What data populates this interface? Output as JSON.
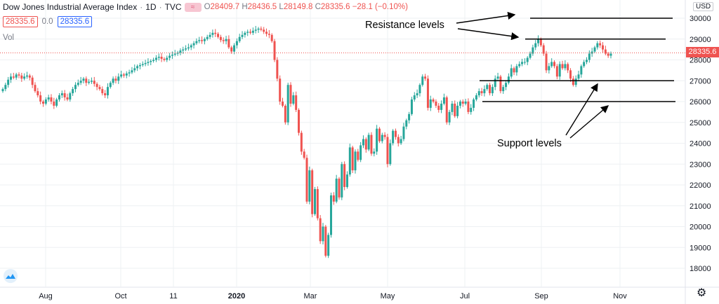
{
  "header": {
    "title": "Dow Jones Industrial Average Index",
    "interval": "1D",
    "source": "TVC",
    "badge": "≈",
    "ohlc": {
      "o_label": "O",
      "o": "28409.7",
      "h_label": "H",
      "h": "28436.5",
      "l_label": "L",
      "l": "28149.8",
      "c_label": "C",
      "c": "28335.6",
      "change": "−28.1 (−0.10%)"
    }
  },
  "legend_row": {
    "price_box": "28335.6",
    "zero": "0.0",
    "price_box_blue": "28335.6"
  },
  "volume_label": "Vol",
  "currency": "USD",
  "last_price_tag": "28335.6",
  "annotations": {
    "resistance": "Resistance levels",
    "support": "Support levels"
  },
  "colors": {
    "up": "#26a69a",
    "down": "#ef5350",
    "grid": "#eef0f3",
    "level_line": "#000000",
    "price_line": "#ef5350"
  },
  "chart_data": {
    "type": "candlestick",
    "title": "Dow Jones Industrial Average Index · 1D · TVC",
    "x_ticks": [
      "Aug",
      "Oct",
      "11",
      "2020",
      "Mar",
      "May",
      "Jul",
      "Sep",
      "Nov"
    ],
    "y_ticks": [
      18000,
      19000,
      20000,
      21000,
      22000,
      23000,
      24000,
      25000,
      26000,
      27000,
      28000,
      29000,
      30000
    ],
    "ylim": [
      17300,
      30700
    ],
    "last_price": 28335.6,
    "grid": true,
    "series": [
      {
        "name": "Price",
        "values": [
          26600,
          26800,
          27050,
          27200,
          27150,
          27300,
          27250,
          27100,
          27200,
          27250,
          27150,
          26800,
          26500,
          26300,
          26000,
          25900,
          26100,
          26200,
          26000,
          25800,
          26100,
          26300,
          26400,
          26200,
          26100,
          26400,
          26600,
          26800,
          26900,
          27000,
          27100,
          26900,
          26950,
          27000,
          26850,
          26700,
          26600,
          26400,
          26300,
          26700,
          26900,
          27100,
          27000,
          27200,
          27300,
          27250,
          27350,
          27400,
          27500,
          27600,
          27700,
          27750,
          27800,
          27850,
          27900,
          27950,
          28000,
          28100,
          28150,
          28050,
          28000,
          28100,
          28200,
          28250,
          28300,
          28350,
          28450,
          28500,
          28550,
          28600,
          28700,
          28800,
          28900,
          28950,
          28900,
          29000,
          29100,
          29200,
          29300,
          29250,
          29100,
          28950,
          28900,
          29000,
          28600,
          28400,
          28700,
          28900,
          29100,
          29200,
          29300,
          29350,
          29300,
          29400,
          29450,
          29500,
          29450,
          29350,
          29250,
          29200,
          28900,
          28000,
          27100,
          26000,
          25800,
          25000,
          26800,
          25900,
          26300,
          25600,
          24500,
          23600,
          23300,
          21200,
          22700,
          20600,
          21800,
          20400,
          19300,
          20000,
          18600,
          19600,
          21500,
          21200,
          22300,
          21400,
          23000,
          21900,
          22500,
          23800,
          22700,
          23600,
          23200,
          23900,
          24200,
          23700,
          24400,
          23500,
          23600,
          24700,
          24100,
          24400,
          24300,
          23000,
          24000,
          24600,
          24300,
          24000,
          24200,
          24800,
          25100,
          25400,
          26100,
          26300,
          26400,
          26800,
          27200,
          27100,
          25700,
          26100,
          26000,
          25800,
          25600,
          25900,
          26200,
          25000,
          25500,
          25900,
          25300,
          25800,
          26000,
          25900,
          26000,
          25500,
          25700,
          26100,
          26300,
          26500,
          26400,
          26600,
          26800,
          26400,
          26700,
          27100,
          27200,
          26500,
          26700,
          26900,
          27200,
          27600,
          27400,
          27700,
          27800,
          27900,
          27900,
          28100,
          28300,
          28600,
          28800,
          29000,
          28700,
          28300,
          27500,
          27700,
          27900,
          27700,
          27200,
          27800,
          27600,
          27800,
          27500,
          27100,
          26800,
          27100,
          27300,
          27700,
          27900,
          28000,
          28300,
          28400,
          28600,
          28800,
          28700,
          28500,
          28300,
          28200,
          28300
        ]
      }
    ],
    "support_levels": [
      27000,
      26000
    ],
    "resistance_levels": [
      30000,
      29000
    ]
  }
}
